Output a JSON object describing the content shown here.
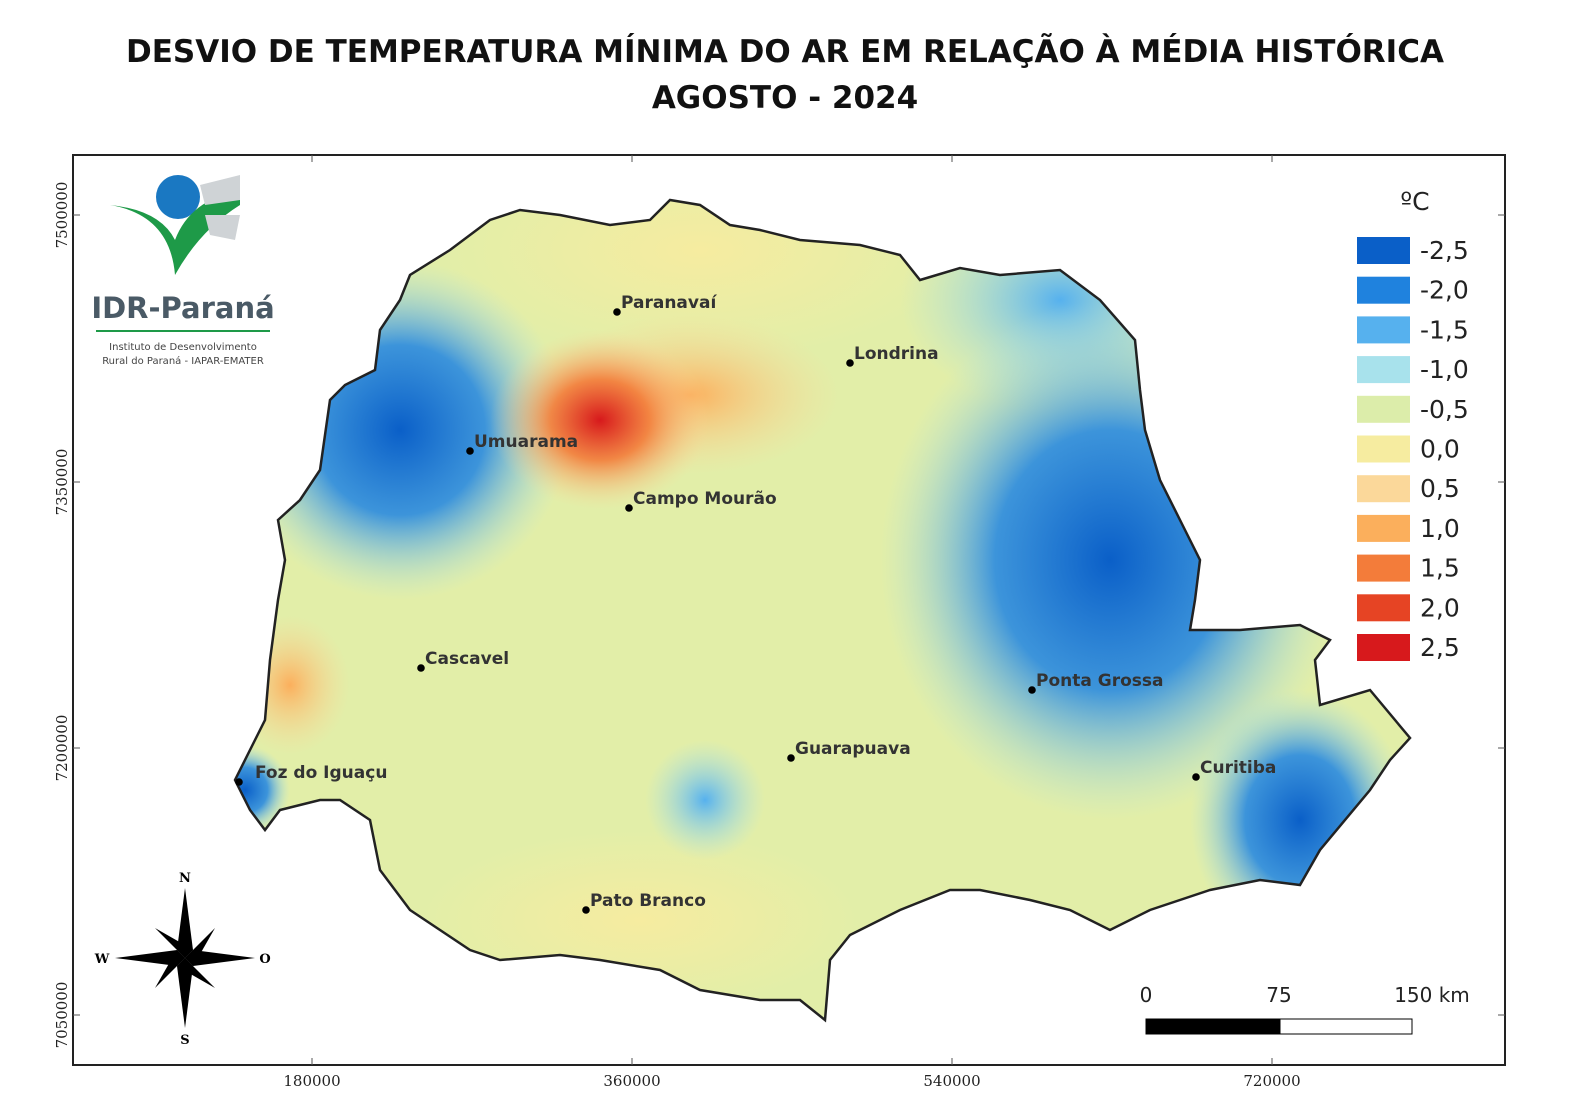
{
  "header": {
    "title": [
      "DESVIO DE TEMPERATURA MÍNIMA DO AR EM RELAÇÃO À MÉDIA HISTÓRICA",
      "AGOSTO - 2024"
    ]
  },
  "legend": {
    "unit": "ºC",
    "items": [
      {
        "label": "-2,5",
        "color": "#0a5fc8"
      },
      {
        "label": "-2,0",
        "color": "#1f82de"
      },
      {
        "label": "-1,5",
        "color": "#56b1ee"
      },
      {
        "label": "-1,0",
        "color": "#a8e2ec"
      },
      {
        "label": "-0,5",
        "color": "#dcedaa"
      },
      {
        "label": "0,0",
        "color": "#f6eca0"
      },
      {
        "label": "0,5",
        "color": "#fbd89a"
      },
      {
        "label": "1,0",
        "color": "#fbaf5c"
      },
      {
        "label": "1,5",
        "color": "#f37c3a"
      },
      {
        "label": "2,0",
        "color": "#e64424"
      },
      {
        "label": "2,5",
        "color": "#d7191c"
      }
    ]
  },
  "cities": [
    "Paranavaí",
    "Londrina",
    "Umuarama",
    "Campo Mourão",
    "Cascavel",
    "Ponta Grossa",
    "Guarapuava",
    "Foz do Iguaçu",
    "Curitiba",
    "Pato Branco"
  ],
  "axes": {
    "x_ticks": [
      "180000",
      "360000",
      "540000",
      "720000"
    ],
    "y_ticks": [
      "7500000",
      "7350000",
      "7200000",
      "7050000"
    ]
  },
  "logo": {
    "name": "IDR-Paraná",
    "subtitle": [
      "Instituto de Desenvolvimento",
      "Rural do Paraná - IAPAR-EMATER"
    ]
  },
  "compass": {
    "north": "N",
    "south": "S",
    "west": "W",
    "east": "O"
  },
  "scale_bar": {
    "labels": [
      "0",
      "75",
      "150 km"
    ]
  }
}
